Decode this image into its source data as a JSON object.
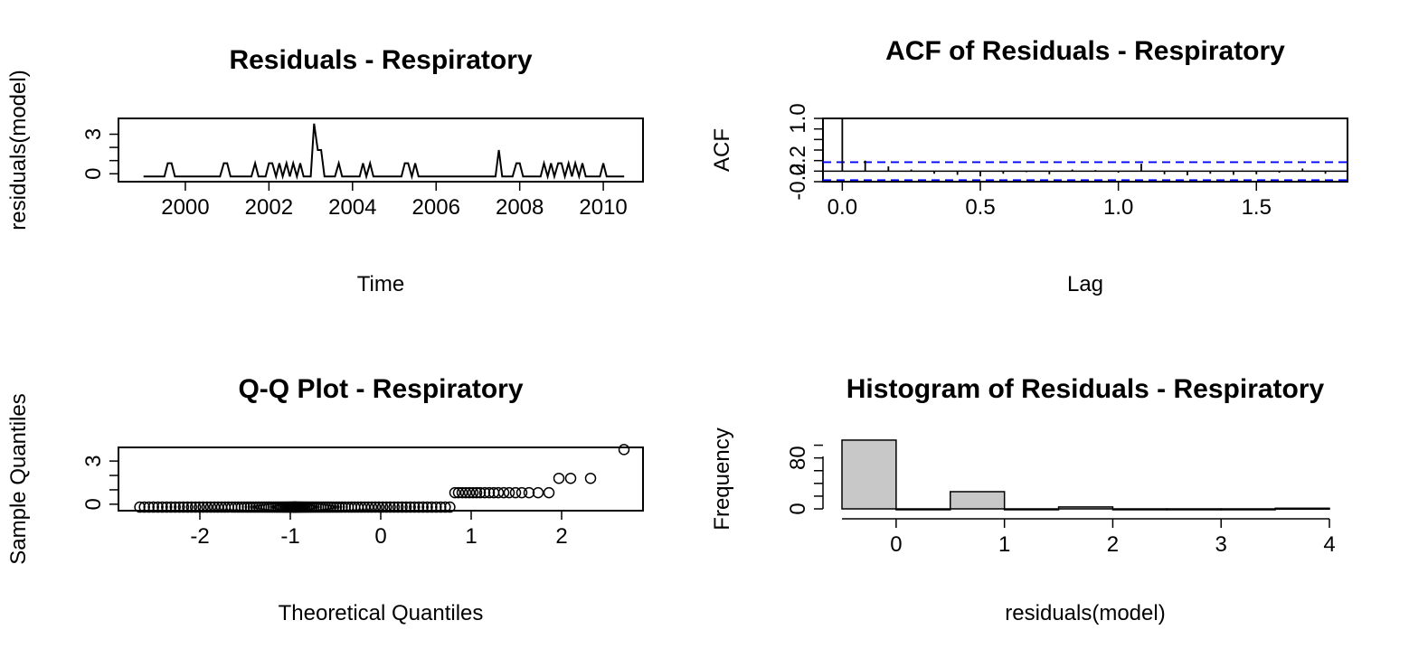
{
  "colors": {
    "line": "#000000",
    "ci": "#0000ff",
    "bar_fill": "#c8c8c8",
    "bar_stroke": "#000000",
    "background": "#ffffff"
  },
  "chart_data": [
    {
      "type": "line",
      "title": "Residuals - Respiratory",
      "xlabel": "Time",
      "ylabel": "residuals(model)",
      "xlim": [
        1998.4,
        2010.95
      ],
      "ylim": [
        -0.6,
        4.2
      ],
      "xticks": [
        2000,
        2002,
        2004,
        2006,
        2008,
        2010
      ],
      "yticks": [
        0,
        1,
        2,
        3
      ],
      "ytick_labels": [
        "0",
        "",
        "",
        "3"
      ],
      "x": [
        1999.0,
        1999.5,
        1999.58,
        1999.67,
        1999.75,
        2000.83,
        2000.92,
        2001.0,
        2001.08,
        2001.58,
        2001.67,
        2001.75,
        2001.92,
        2002.0,
        2002.08,
        2002.17,
        2002.25,
        2002.33,
        2002.42,
        2002.5,
        2002.58,
        2002.67,
        2002.75,
        2002.83,
        2002.92,
        2003.0,
        2003.08,
        2003.17,
        2003.25,
        2003.33,
        2003.58,
        2003.67,
        2003.75,
        2004.17,
        2004.25,
        2004.33,
        2004.42,
        2004.5,
        2005.17,
        2005.25,
        2005.33,
        2005.42,
        2005.5,
        2005.58,
        2007.42,
        2007.5,
        2007.58,
        2007.83,
        2007.92,
        2008.0,
        2008.08,
        2008.5,
        2008.58,
        2008.67,
        2008.75,
        2008.83,
        2008.92,
        2009.0,
        2009.08,
        2009.17,
        2009.25,
        2009.33,
        2009.42,
        2009.5,
        2009.58,
        2009.92,
        2010.0,
        2010.08,
        2010.5
      ],
      "y": [
        -0.2,
        -0.2,
        0.8,
        0.8,
        -0.2,
        -0.2,
        0.8,
        0.8,
        -0.2,
        -0.2,
        0.8,
        -0.2,
        -0.2,
        0.8,
        0.8,
        -0.2,
        0.8,
        -0.2,
        0.8,
        -0.2,
        0.8,
        -0.2,
        0.8,
        -0.2,
        -0.2,
        -0.2,
        3.8,
        1.8,
        1.8,
        -0.2,
        -0.2,
        0.8,
        -0.2,
        -0.2,
        0.8,
        -0.2,
        0.8,
        -0.2,
        -0.2,
        0.8,
        0.8,
        -0.2,
        0.8,
        -0.2,
        -0.2,
        1.8,
        -0.2,
        -0.2,
        0.8,
        0.8,
        -0.2,
        -0.2,
        0.8,
        -0.2,
        0.8,
        -0.2,
        0.8,
        0.8,
        -0.2,
        0.8,
        -0.2,
        0.8,
        -0.2,
        0.8,
        -0.2,
        -0.2,
        0.8,
        -0.2,
        -0.2
      ]
    },
    {
      "type": "bar",
      "title": "ACF of Residuals - Respiratory",
      "xlabel": "Lag",
      "ylabel": "ACF",
      "xlim": [
        -0.07,
        1.83
      ],
      "ylim": [
        -0.2,
        1.0
      ],
      "xticks": [
        0.0,
        0.5,
        1.0,
        1.5
      ],
      "xtick_labels": [
        "0.0",
        "0.5",
        "1.0",
        "1.5"
      ],
      "yticks": [
        -0.2,
        0.0,
        0.2,
        0.4,
        0.6,
        0.8,
        1.0
      ],
      "ytick_labels": [
        "-0.2",
        "",
        "0.2",
        "",
        "",
        "",
        "1.0"
      ],
      "ci": [
        0.17,
        -0.17
      ],
      "lags": [
        0.0,
        0.083,
        0.167,
        0.25,
        0.333,
        0.417,
        0.5,
        0.583,
        0.667,
        0.75,
        0.833,
        0.917,
        1.0,
        1.083,
        1.167,
        1.25,
        1.333,
        1.417,
        1.5,
        1.583,
        1.667,
        1.75
      ],
      "acf": [
        1.0,
        0.2,
        0.09,
        0.03,
        -0.05,
        -0.07,
        -0.1,
        -0.05,
        -0.02,
        -0.06,
        0.03,
        0.02,
        -0.03,
        0.14,
        -0.06,
        -0.08,
        -0.05,
        -0.07,
        -0.06,
        -0.03,
        0.05,
        -0.05
      ]
    },
    {
      "type": "scatter",
      "title": "Q-Q Plot - Respiratory",
      "xlabel": "Theoretical Quantiles",
      "ylabel": "Sample Quantiles",
      "xlim": [
        -2.9,
        2.9
      ],
      "ylim": [
        -0.45,
        3.95
      ],
      "xticks": [
        -2,
        -1,
        0,
        1,
        2
      ],
      "yticks": [
        0,
        1,
        2,
        3
      ],
      "ytick_labels": [
        "0",
        "",
        "",
        "3"
      ],
      "n_low": 108,
      "low_value": -0.2,
      "x_low_max": 0.79,
      "x": [
        0.82,
        0.86,
        0.9,
        0.94,
        0.98,
        1.02,
        1.06,
        1.1,
        1.15,
        1.2,
        1.25,
        1.3,
        1.36,
        1.42,
        1.49,
        1.56,
        1.64,
        1.74,
        1.86,
        1.97,
        2.1,
        2.32,
        2.69
      ],
      "y": [
        0.8,
        0.8,
        0.8,
        0.8,
        0.8,
        0.8,
        0.8,
        0.8,
        0.8,
        0.8,
        0.8,
        0.8,
        0.8,
        0.8,
        0.8,
        0.8,
        0.8,
        0.8,
        0.8,
        1.8,
        1.8,
        1.8,
        3.8
      ]
    },
    {
      "type": "bar",
      "title": "Histogram of Residuals - Respiratory",
      "xlabel": "residuals(model)",
      "ylabel": "Frequency",
      "xlim": [
        -0.5,
        4.0
      ],
      "ylim": [
        0,
        115
      ],
      "xticks": [
        0,
        1,
        2,
        3,
        4
      ],
      "yticks": [
        0,
        20,
        40,
        60,
        80,
        100
      ],
      "ytick_labels": [
        "0",
        "",
        "",
        "",
        "80",
        ""
      ],
      "bins": [
        [
          -0.5,
          0
        ],
        [
          0,
          0.5
        ],
        [
          0.5,
          1.0
        ],
        [
          1.0,
          1.5
        ],
        [
          1.5,
          2.0
        ],
        [
          2.0,
          2.5
        ],
        [
          2.5,
          3.0
        ],
        [
          3.0,
          3.5
        ],
        [
          3.5,
          4.0
        ]
      ],
      "counts": [
        108,
        0,
        27,
        0,
        3,
        0,
        0,
        0,
        1
      ]
    }
  ]
}
